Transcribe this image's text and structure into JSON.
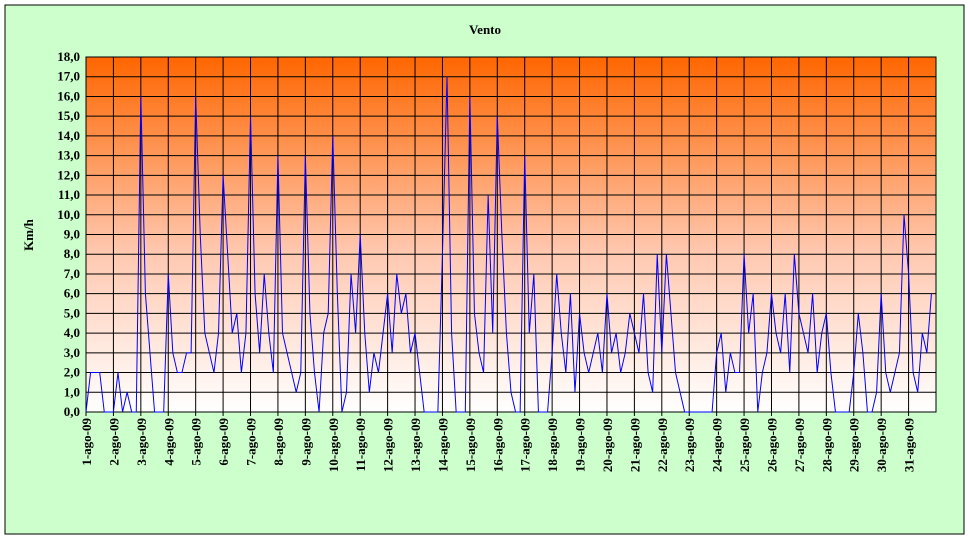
{
  "chart_data": {
    "type": "line",
    "title": "Vento",
    "y_label": "Km/h",
    "categories": [
      "1-ago-09",
      null,
      null,
      null,
      null,
      null,
      "2-ago-09",
      null,
      null,
      null,
      null,
      null,
      "3-ago-09",
      null,
      null,
      null,
      null,
      null,
      "4-ago-09",
      null,
      null,
      null,
      null,
      null,
      "5-ago-09",
      null,
      null,
      null,
      null,
      null,
      "6-ago-09",
      null,
      null,
      null,
      null,
      null,
      "7-ago-09",
      null,
      null,
      null,
      null,
      null,
      "8-ago-09",
      null,
      null,
      null,
      null,
      null,
      "9-ago-09",
      null,
      null,
      null,
      null,
      null,
      "10-ago-09",
      null,
      null,
      null,
      null,
      null,
      "11-ago-09",
      null,
      null,
      null,
      null,
      null,
      "12-ago-09",
      null,
      null,
      null,
      null,
      null,
      "13-ago-09",
      null,
      null,
      null,
      null,
      null,
      "14-ago-09",
      null,
      null,
      null,
      null,
      null,
      "15-ago-09",
      null,
      null,
      null,
      null,
      null,
      "16-ago-09",
      null,
      null,
      null,
      null,
      null,
      "17-ago-09",
      null,
      null,
      null,
      null,
      null,
      "18-ago-09",
      null,
      null,
      null,
      null,
      null,
      "19-ago-09",
      null,
      null,
      null,
      null,
      null,
      "20-ago-09",
      null,
      null,
      null,
      null,
      null,
      "21-ago-09",
      null,
      null,
      null,
      null,
      null,
      "22-ago-09",
      null,
      null,
      null,
      null,
      null,
      "23-ago-09",
      null,
      null,
      null,
      null,
      null,
      "24-ago-09",
      null,
      null,
      null,
      null,
      null,
      "25-ago-09",
      null,
      null,
      null,
      null,
      null,
      "26-ago-09",
      null,
      null,
      null,
      null,
      null,
      "27-ago-09",
      null,
      null,
      null,
      null,
      null,
      "28-ago-09",
      null,
      null,
      null,
      null,
      null,
      "29-ago-09",
      null,
      null,
      null,
      null,
      null,
      "30-ago-09",
      null,
      null,
      null,
      null,
      null,
      "31-ago-09",
      null,
      null,
      null,
      null,
      null
    ],
    "series": [
      {
        "name": "Vento",
        "color": "#0000ff",
        "values": [
          0,
          2,
          2,
          2,
          0,
          0,
          0,
          2,
          0,
          1,
          0,
          0,
          16,
          6,
          3,
          0,
          0,
          0,
          7,
          3,
          2,
          2,
          3,
          3,
          16,
          9,
          4,
          3,
          2,
          4,
          12,
          8,
          4,
          5,
          2,
          4,
          15,
          6,
          3,
          7,
          4,
          2,
          13,
          4,
          3,
          2,
          1,
          2,
          13,
          5,
          2,
          0,
          4,
          5,
          14,
          6,
          0,
          1,
          7,
          4,
          9,
          4,
          1,
          3,
          2,
          4,
          6,
          3,
          7,
          5,
          6,
          3,
          4,
          2,
          0,
          0,
          0,
          0,
          8,
          17,
          4,
          0,
          0,
          0,
          16,
          5,
          3,
          2,
          11,
          4,
          15,
          9,
          4,
          1,
          0,
          0,
          13,
          4,
          7,
          0,
          0,
          0,
          3,
          7,
          4,
          2,
          6,
          1,
          5,
          3,
          2,
          3,
          4,
          2,
          6,
          3,
          4,
          2,
          3,
          5,
          4,
          3,
          6,
          2,
          1,
          8,
          3,
          8,
          5,
          2,
          1,
          0,
          0,
          0,
          0,
          0,
          0,
          0,
          3,
          4,
          1,
          3,
          2,
          2,
          8,
          4,
          6,
          0,
          2,
          3,
          6,
          4,
          3,
          6,
          2,
          8,
          5,
          4,
          3,
          6,
          2,
          4,
          5,
          2,
          0,
          0,
          0,
          0,
          2,
          5,
          3,
          0,
          0,
          1,
          6,
          2,
          1,
          2,
          3,
          10,
          7,
          2,
          1,
          4,
          3,
          6
        ]
      }
    ],
    "ylim": [
      0,
      18
    ],
    "yticks": [
      {
        "value": 0,
        "label": "0,0"
      },
      {
        "value": 1,
        "label": "1,0"
      },
      {
        "value": 2,
        "label": "2,0"
      },
      {
        "value": 3,
        "label": "3,0"
      },
      {
        "value": 4,
        "label": "4,0"
      },
      {
        "value": 5,
        "label": "5,0"
      },
      {
        "value": 6,
        "label": "6,0"
      },
      {
        "value": 7,
        "label": "7,0"
      },
      {
        "value": 8,
        "label": "8,0"
      },
      {
        "value": 9,
        "label": "9,0"
      },
      {
        "value": 10,
        "label": "10,0"
      },
      {
        "value": 11,
        "label": "11,0"
      },
      {
        "value": 12,
        "label": "12,0"
      },
      {
        "value": 13,
        "label": "13,0"
      },
      {
        "value": 14,
        "label": "14,0"
      },
      {
        "value": 15,
        "label": "15,0"
      },
      {
        "value": 16,
        "label": "16,0"
      },
      {
        "value": 17,
        "label": "17,0"
      },
      {
        "value": 18,
        "label": "18,0"
      }
    ],
    "grid": true
  }
}
